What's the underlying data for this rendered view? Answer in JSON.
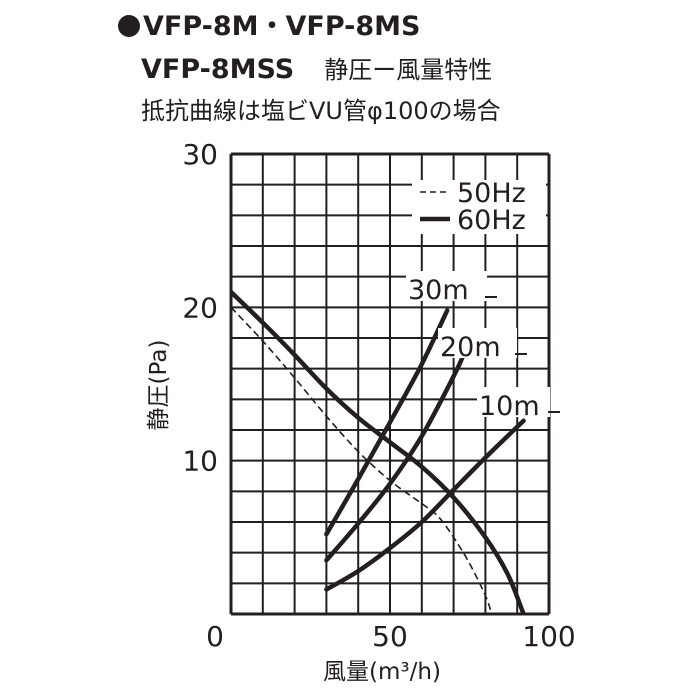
{
  "header": {
    "model_line_1": "VFP-8M・VFP-8MS",
    "model_line_2": "VFP-8MSS",
    "subtitle": "静圧ー風量特性",
    "note": "抵抗曲線は塩ビVU管φ100の場合"
  },
  "chart_data": {
    "type": "line",
    "title": "静圧ー風量特性",
    "xlabel": "風量(m³/h)",
    "ylabel": "静圧(Pa)",
    "xlim": [
      0,
      100
    ],
    "ylim": [
      0,
      30
    ],
    "x_tick_labels": [
      "0",
      "50",
      "100"
    ],
    "y_tick_labels": [
      "10",
      "20",
      "30"
    ],
    "grid": true,
    "legend_position": "top-right",
    "legend": [
      {
        "label": "50Hz",
        "style": "dashed"
      },
      {
        "label": "60Hz",
        "style": "solid"
      }
    ],
    "series": [
      {
        "name": "50Hz",
        "style": "dashed",
        "points": [
          [
            0,
            20
          ],
          [
            10,
            17.8
          ],
          [
            20,
            15.4
          ],
          [
            30,
            12.9
          ],
          [
            40,
            10.6
          ],
          [
            50,
            8.7
          ],
          [
            60,
            7.2
          ],
          [
            65,
            6.4
          ],
          [
            70,
            5.0
          ],
          [
            75,
            3.3
          ],
          [
            80,
            1.2
          ],
          [
            82,
            0
          ]
        ]
      },
      {
        "name": "60Hz",
        "style": "solid",
        "points": [
          [
            0,
            21
          ],
          [
            10,
            19.0
          ],
          [
            20,
            16.9
          ],
          [
            30,
            14.7
          ],
          [
            40,
            12.8
          ],
          [
            50,
            11.2
          ],
          [
            60,
            9.6
          ],
          [
            70,
            7.6
          ],
          [
            80,
            5.0
          ],
          [
            87,
            2.6
          ],
          [
            92,
            0
          ]
        ]
      }
    ],
    "resistance_curves": [
      {
        "label": "30m",
        "points": [
          [
            30,
            5.2
          ],
          [
            40,
            8.8
          ],
          [
            50,
            12.5
          ],
          [
            60,
            16.3
          ],
          [
            68,
            19.8
          ]
        ]
      },
      {
        "label": "20m",
        "points": [
          [
            30,
            3.5
          ],
          [
            40,
            5.9
          ],
          [
            50,
            8.5
          ],
          [
            60,
            11.6
          ],
          [
            70,
            15.5
          ],
          [
            74,
            17.3
          ]
        ]
      },
      {
        "label": "10m",
        "points": [
          [
            30,
            1.6
          ],
          [
            40,
            2.8
          ],
          [
            50,
            4.3
          ],
          [
            60,
            6.0
          ],
          [
            70,
            8.1
          ],
          [
            80,
            10.2
          ],
          [
            92,
            12.6
          ]
        ]
      }
    ]
  }
}
